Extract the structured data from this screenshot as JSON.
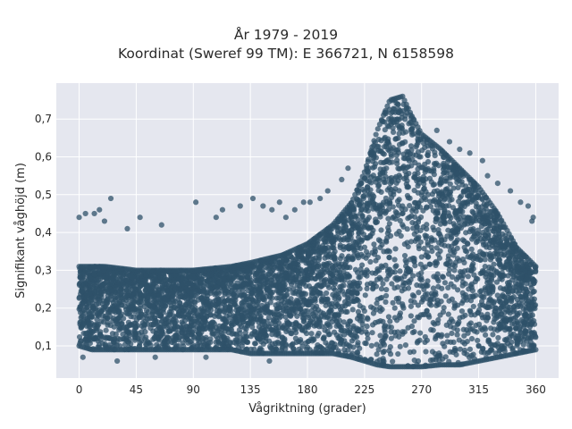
{
  "chart_data": {
    "type": "scatter",
    "title": "År 1979 - 2019",
    "subtitle": "Koordinat (Sweref 99 TM): E 366721, N 6158598",
    "xlabel": "Vågriktning (grader)",
    "ylabel": "Signifikant våghöjd (m)",
    "xlim": [
      -18,
      378
    ],
    "ylim": [
      0.015,
      0.795
    ],
    "x_ticks": [
      0,
      45,
      90,
      135,
      180,
      225,
      270,
      315,
      360
    ],
    "x_tick_labels": [
      "0",
      "45",
      "90",
      "135",
      "180",
      "225",
      "270",
      "315",
      "360"
    ],
    "y_ticks": [
      0.1,
      0.2,
      0.3,
      0.4,
      0.5,
      0.6,
      0.7
    ],
    "y_tick_labels": [
      "0,1",
      "0,2",
      "0,3",
      "0,4",
      "0,5",
      "0,6",
      "0,7"
    ],
    "grid": true,
    "legend": "none",
    "envelope": {
      "description": "dense point cloud; per-direction min and max of wave height",
      "x": [
        0,
        10,
        20,
        45,
        90,
        120,
        135,
        160,
        180,
        200,
        215,
        225,
        235,
        245,
        255,
        262,
        270,
        285,
        300,
        315,
        330,
        345,
        360
      ],
      "y_min": [
        0.1,
        0.09,
        0.09,
        0.09,
        0.09,
        0.09,
        0.08,
        0.08,
        0.08,
        0.08,
        0.07,
        0.06,
        0.05,
        0.045,
        0.045,
        0.045,
        0.045,
        0.05,
        0.05,
        0.06,
        0.07,
        0.08,
        0.09
      ],
      "y_max": [
        0.31,
        0.31,
        0.31,
        0.3,
        0.3,
        0.31,
        0.32,
        0.34,
        0.37,
        0.42,
        0.48,
        0.56,
        0.67,
        0.75,
        0.76,
        0.71,
        0.66,
        0.62,
        0.57,
        0.52,
        0.45,
        0.36,
        0.31
      ]
    },
    "outliers": [
      {
        "x": 0,
        "y": 0.44
      },
      {
        "x": 5,
        "y": 0.45
      },
      {
        "x": 12,
        "y": 0.45
      },
      {
        "x": 16,
        "y": 0.46
      },
      {
        "x": 25,
        "y": 0.49
      },
      {
        "x": 20,
        "y": 0.43
      },
      {
        "x": 48,
        "y": 0.44
      },
      {
        "x": 38,
        "y": 0.41
      },
      {
        "x": 65,
        "y": 0.42
      },
      {
        "x": 92,
        "y": 0.48
      },
      {
        "x": 108,
        "y": 0.44
      },
      {
        "x": 113,
        "y": 0.46
      },
      {
        "x": 127,
        "y": 0.47
      },
      {
        "x": 137,
        "y": 0.49
      },
      {
        "x": 145,
        "y": 0.47
      },
      {
        "x": 152,
        "y": 0.46
      },
      {
        "x": 158,
        "y": 0.48
      },
      {
        "x": 163,
        "y": 0.44
      },
      {
        "x": 170,
        "y": 0.46
      },
      {
        "x": 177,
        "y": 0.48
      },
      {
        "x": 182,
        "y": 0.48
      },
      {
        "x": 190,
        "y": 0.49
      },
      {
        "x": 196,
        "y": 0.51
      },
      {
        "x": 207,
        "y": 0.54
      },
      {
        "x": 212,
        "y": 0.57
      },
      {
        "x": 282,
        "y": 0.67
      },
      {
        "x": 292,
        "y": 0.64
      },
      {
        "x": 300,
        "y": 0.62
      },
      {
        "x": 308,
        "y": 0.61
      },
      {
        "x": 318,
        "y": 0.59
      },
      {
        "x": 322,
        "y": 0.55
      },
      {
        "x": 330,
        "y": 0.53
      },
      {
        "x": 340,
        "y": 0.51
      },
      {
        "x": 348,
        "y": 0.48
      },
      {
        "x": 354,
        "y": 0.47
      },
      {
        "x": 358,
        "y": 0.44
      },
      {
        "x": 357,
        "y": 0.43
      },
      {
        "x": 3,
        "y": 0.07
      },
      {
        "x": 30,
        "y": 0.06
      },
      {
        "x": 60,
        "y": 0.07
      },
      {
        "x": 100,
        "y": 0.07
      },
      {
        "x": 150,
        "y": 0.06
      }
    ],
    "marker_color": "#2f5269",
    "plot_background": "#e5e7ef",
    "grid_color": "#ffffff"
  }
}
